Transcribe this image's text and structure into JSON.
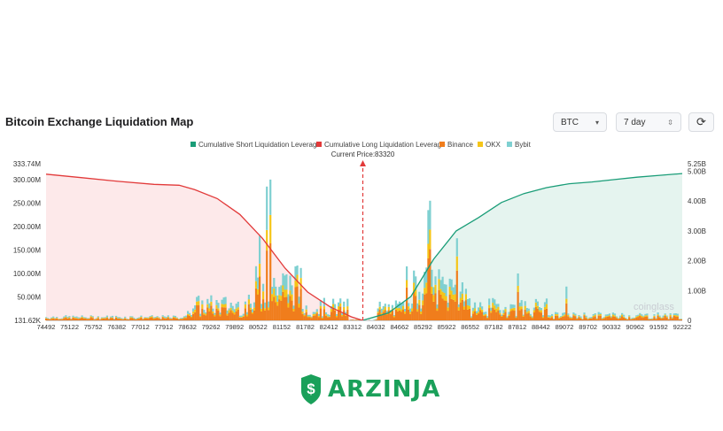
{
  "header": {
    "title": "Bitcoin Exchange Liquidation Map",
    "coin": "BTC",
    "period": "7 day"
  },
  "colors": {
    "short_line": "#1a9d78",
    "long_line": "#e23a3a",
    "binance": "#f07d1c",
    "okx": "#f5c518",
    "bybit": "#7fd0d1",
    "long_fill": "#fde9ea",
    "short_fill": "#e5f4ef",
    "brand": "#1aa05a"
  },
  "watermark": "coinglass",
  "logo": {
    "text": "ARZINJA"
  },
  "chart_data": {
    "type": "bar",
    "current_price_label": "Current Price:83320",
    "current_price": 83320,
    "legend": [
      {
        "name": "Cumulative Short Liquidation Leverage",
        "color": "#1a9d78"
      },
      {
        "name": "Cumulative Long Liquidation Leverage",
        "color": "#e23a3a"
      },
      {
        "name": "Binance",
        "color": "#f07d1c"
      },
      {
        "name": "OKX",
        "color": "#f5c518"
      },
      {
        "name": "Bybit",
        "color": "#7fd0d1"
      }
    ],
    "x_ticks": [
      "74492",
      "75122",
      "75752",
      "76382",
      "77012",
      "77912",
      "78632",
      "79262",
      "79892",
      "80522",
      "81152",
      "81782",
      "82412",
      "83312",
      "84032",
      "84662",
      "85292",
      "85922",
      "86552",
      "87182",
      "87812",
      "88442",
      "89072",
      "89702",
      "90332",
      "90962",
      "91592",
      "92222"
    ],
    "x_range": [
      74492,
      92222
    ],
    "y_left_ticks": [
      "333.74M",
      "300.00M",
      "250.00M",
      "200.00M",
      "150.00M",
      "100.00M",
      "50.00M",
      "131.62K"
    ],
    "y_left_range": [
      0,
      333.74
    ],
    "y_right_ticks": [
      "5.25B",
      "5.00B",
      "4.00B",
      "3.00B",
      "2.00B",
      "1.00B",
      "0"
    ],
    "y_right_range": [
      0,
      5.25
    ],
    "peaks": [
      {
        "x": 80752,
        "value": 300
      },
      {
        "x": 80652,
        "value": 285
      },
      {
        "x": 80452,
        "value": 180
      },
      {
        "x": 85152,
        "value": 235
      },
      {
        "x": 85202,
        "value": 255
      },
      {
        "x": 85952,
        "value": 175
      },
      {
        "x": 84552,
        "value": 115
      },
      {
        "x": 81452,
        "value": 115
      },
      {
        "x": 88972,
        "value": 72
      },
      {
        "x": 87652,
        "value": 100
      }
    ],
    "cumulative_long": {
      "unit": "B",
      "points": [
        [
          74492,
          4.9
        ],
        [
          75500,
          4.78
        ],
        [
          76500,
          4.66
        ],
        [
          77500,
          4.56
        ],
        [
          78200,
          4.53
        ],
        [
          78632,
          4.38
        ],
        [
          79262,
          4.08
        ],
        [
          79892,
          3.55
        ],
        [
          80522,
          2.75
        ],
        [
          81152,
          1.75
        ],
        [
          81782,
          0.95
        ],
        [
          82412,
          0.45
        ],
        [
          83000,
          0.12
        ],
        [
          83312,
          0.0
        ]
      ]
    },
    "cumulative_short": {
      "unit": "B",
      "points": [
        [
          83312,
          0.0
        ],
        [
          84032,
          0.25
        ],
        [
          84662,
          0.8
        ],
        [
          85292,
          2.05
        ],
        [
          85922,
          3.0
        ],
        [
          86552,
          3.45
        ],
        [
          87182,
          3.95
        ],
        [
          87812,
          4.25
        ],
        [
          88442,
          4.45
        ],
        [
          89072,
          4.58
        ],
        [
          89702,
          4.64
        ],
        [
          90332,
          4.72
        ],
        [
          90962,
          4.8
        ],
        [
          91592,
          4.86
        ],
        [
          92222,
          4.92
        ]
      ]
    }
  }
}
